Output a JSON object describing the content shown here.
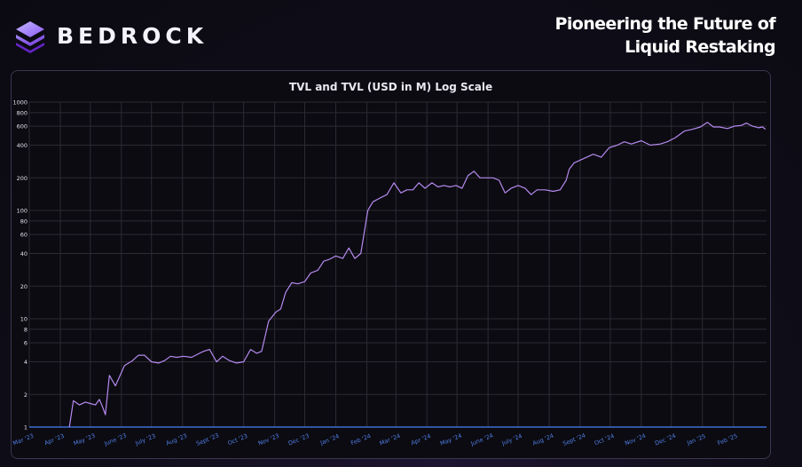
{
  "brand": {
    "name": "BEDROCK",
    "logo_icon": "bedrock-layers-icon",
    "accent": "#8b5cf6"
  },
  "tagline": {
    "line1": "Pioneering the Future of",
    "line2": "Liquid Restaking"
  },
  "chart_data": {
    "type": "line",
    "title": "TVL and TVL (USD in M) Log Scale",
    "xlabel": "",
    "ylabel": "",
    "yscale": "log",
    "ylim": [
      1,
      1000
    ],
    "grid": true,
    "y_ticks": [
      1,
      2,
      4,
      6,
      8,
      10,
      20,
      40,
      60,
      80,
      100,
      200,
      400,
      600,
      800,
      1000
    ],
    "y_tick_labels": [
      "1",
      "2",
      "4",
      "6",
      "8",
      "10",
      "20",
      "40",
      "60",
      "80",
      "100",
      "200",
      "400",
      "600",
      "800",
      "1000"
    ],
    "x_ticks": [
      "Mar '23",
      "Apr '23",
      "May '23",
      "June '23",
      "July '23",
      "Aug '23",
      "Sept '23",
      "Oct '23",
      "Nov '23",
      "Dec '23",
      "Jan '24",
      "Feb '24",
      "Mar '24",
      "Apr '24",
      "May '24",
      "June '24",
      "July '24",
      "Aug '24",
      "Sept '24",
      "Oct '24",
      "Nov '24",
      "Dec '24",
      "Jan '25",
      "Feb '25"
    ],
    "line_color": "#b58af0",
    "series": [
      {
        "x": [
          "2023-04-10",
          "2023-04-14",
          "2023-04-20",
          "2023-04-26",
          "2023-05-01",
          "2023-05-06",
          "2023-05-10",
          "2023-05-13",
          "2023-05-16",
          "2023-05-20",
          "2023-05-26",
          "2023-06-04",
          "2023-06-12",
          "2023-06-18",
          "2023-06-24",
          "2023-07-01",
          "2023-07-08",
          "2023-07-14",
          "2023-07-20",
          "2023-07-26",
          "2023-08-02",
          "2023-08-10",
          "2023-08-16",
          "2023-08-22",
          "2023-08-28",
          "2023-09-04",
          "2023-09-10",
          "2023-09-17",
          "2023-09-24",
          "2023-10-01",
          "2023-10-08",
          "2023-10-14",
          "2023-10-19",
          "2023-10-26",
          "2023-11-02",
          "2023-11-07",
          "2023-11-12",
          "2023-11-18",
          "2023-11-24",
          "2023-12-01",
          "2023-12-07",
          "2023-12-14",
          "2023-12-20",
          "2023-12-26",
          "2024-01-01",
          "2024-01-08",
          "2024-01-14",
          "2024-01-20",
          "2024-01-26",
          "2024-02-02",
          "2024-02-07",
          "2024-02-14",
          "2024-02-21",
          "2024-02-28",
          "2024-03-06",
          "2024-03-12",
          "2024-03-18",
          "2024-03-24",
          "2024-03-30",
          "2024-04-06",
          "2024-04-12",
          "2024-04-18",
          "2024-04-24",
          "2024-04-30",
          "2024-05-06",
          "2024-05-12",
          "2024-05-18",
          "2024-05-24",
          "2024-05-30",
          "2024-06-06",
          "2024-06-12",
          "2024-06-18",
          "2024-06-24",
          "2024-07-01",
          "2024-07-08",
          "2024-07-14",
          "2024-07-20",
          "2024-07-28",
          "2024-08-05",
          "2024-08-12",
          "2024-08-18",
          "2024-08-21",
          "2024-08-26",
          "2024-09-04",
          "2024-09-14",
          "2024-09-22",
          "2024-09-30",
          "2024-10-08",
          "2024-10-15",
          "2024-10-22",
          "2024-11-01",
          "2024-11-10",
          "2024-11-20",
          "2024-11-27",
          "2024-12-05",
          "2024-12-14",
          "2024-12-22",
          "2024-12-30",
          "2025-01-06",
          "2025-01-12",
          "2025-01-18",
          "2025-01-26",
          "2025-02-02",
          "2025-02-09",
          "2025-02-14",
          "2025-02-20",
          "2025-02-26",
          "2025-03-02",
          "2025-03-05"
        ],
        "values": [
          1.0,
          1.75,
          1.6,
          1.7,
          1.65,
          1.6,
          1.8,
          1.55,
          1.3,
          3.0,
          2.4,
          3.7,
          4.1,
          4.6,
          4.6,
          4.0,
          3.9,
          4.1,
          4.5,
          4.4,
          4.5,
          4.4,
          4.7,
          5.0,
          5.2,
          4.0,
          4.5,
          4.1,
          3.9,
          4.0,
          5.2,
          4.8,
          5.0,
          9.5,
          11.5,
          12.3,
          17.5,
          21.5,
          21.0,
          22.0,
          26.5,
          28.0,
          34.0,
          35.5,
          38.0,
          36.0,
          45.0,
          36.0,
          40.0,
          100.0,
          120.0,
          130.0,
          140.0,
          180.0,
          145.0,
          155.0,
          155.0,
          180.0,
          160.0,
          180.0,
          165.0,
          170.0,
          165.0,
          170.0,
          160.0,
          210.0,
          230.0,
          200.0,
          200.0,
          200.0,
          190.0,
          145.0,
          160.0,
          170.0,
          160.0,
          140.0,
          155.0,
          155.0,
          150.0,
          155.0,
          190.0,
          240.0,
          275.0,
          300.0,
          330.0,
          310.0,
          380.0,
          400.0,
          430.0,
          410.0,
          440.0,
          400.0,
          410.0,
          430.0,
          470.0,
          540.0,
          560.0,
          590.0,
          650.0,
          590.0,
          590.0,
          570.0,
          600.0,
          610.0,
          640.0,
          600.0,
          580.0,
          590.0,
          560.0
        ]
      }
    ]
  }
}
